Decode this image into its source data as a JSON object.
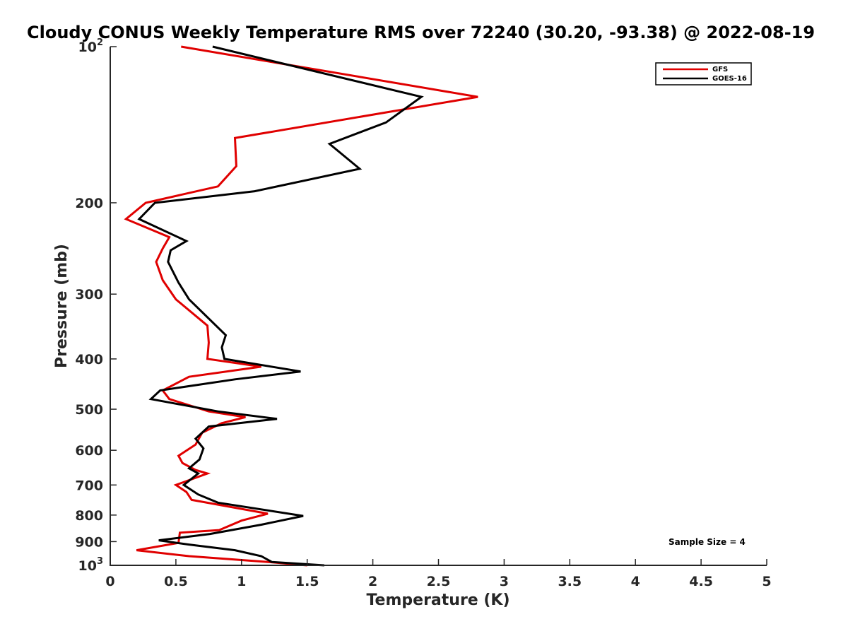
{
  "chart_data": {
    "type": "line",
    "title": "Cloudy CONUS Weekly Temperature RMS over 72240 (30.20, -93.38) @ 2022-08-19",
    "xlabel": "Temperature (K)",
    "ylabel": "Pressure (mb)",
    "xlim": [
      0,
      5
    ],
    "ylim": [
      100,
      1000
    ],
    "y_scale": "log",
    "y_reversed": true,
    "x_ticks": [
      "0",
      "0.5",
      "1",
      "1.5",
      "2",
      "2.5",
      "3",
      "3.5",
      "4",
      "4.5",
      "5"
    ],
    "x_tick_values": [
      0,
      0.5,
      1,
      1.5,
      2,
      2.5,
      3,
      3.5,
      4,
      4.5,
      5
    ],
    "y_tick_values": [
      100,
      200,
      300,
      400,
      500,
      600,
      700,
      800,
      900,
      1000
    ],
    "y_ticks": [
      {
        "base": "10",
        "exp": "2"
      },
      {
        "base": "200",
        "exp": ""
      },
      {
        "base": "300",
        "exp": ""
      },
      {
        "base": "400",
        "exp": ""
      },
      {
        "base": "500",
        "exp": ""
      },
      {
        "base": "600",
        "exp": ""
      },
      {
        "base": "700",
        "exp": ""
      },
      {
        "base": "800",
        "exp": ""
      },
      {
        "base": "900",
        "exp": ""
      },
      {
        "base": "10",
        "exp": "3"
      }
    ],
    "grid": false,
    "legend_position": "top-right",
    "annotation": "Sample Size = 4",
    "series": [
      {
        "name": "GFS",
        "color": "#e00000",
        "points": [
          [
            0.54,
            100
          ],
          [
            2.8,
            125
          ],
          [
            0.95,
            150
          ],
          [
            0.96,
            170
          ],
          [
            0.82,
            186
          ],
          [
            0.27,
            200
          ],
          [
            0.12,
            215
          ],
          [
            0.45,
            233
          ],
          [
            0.4,
            245
          ],
          [
            0.35,
            260
          ],
          [
            0.4,
            282
          ],
          [
            0.5,
            307
          ],
          [
            0.74,
            345
          ],
          [
            0.75,
            372
          ],
          [
            0.74,
            400
          ],
          [
            1.15,
            414
          ],
          [
            0.6,
            433
          ],
          [
            0.4,
            460
          ],
          [
            0.45,
            478
          ],
          [
            0.75,
            505
          ],
          [
            1.03,
            518
          ],
          [
            0.85,
            532
          ],
          [
            0.7,
            555
          ],
          [
            0.65,
            585
          ],
          [
            0.52,
            615
          ],
          [
            0.55,
            635
          ],
          [
            0.65,
            655
          ],
          [
            0.74,
            665
          ],
          [
            0.5,
            700
          ],
          [
            0.58,
            722
          ],
          [
            0.62,
            748
          ],
          [
            1.2,
            795
          ],
          [
            1.0,
            820
          ],
          [
            0.83,
            855
          ],
          [
            0.53,
            865
          ],
          [
            0.52,
            905
          ],
          [
            0.2,
            935
          ],
          [
            0.6,
            960
          ],
          [
            1.2,
            985
          ],
          [
            1.5,
            1000
          ]
        ]
      },
      {
        "name": "GOES-16",
        "color": "#000000",
        "points": [
          [
            0.78,
            100
          ],
          [
            2.37,
            125
          ],
          [
            2.1,
            140
          ],
          [
            1.67,
            154
          ],
          [
            1.9,
            172
          ],
          [
            1.1,
            190
          ],
          [
            0.34,
            200
          ],
          [
            0.22,
            215
          ],
          [
            0.58,
            237
          ],
          [
            0.46,
            247
          ],
          [
            0.44,
            260
          ],
          [
            0.52,
            285
          ],
          [
            0.6,
            307
          ],
          [
            0.88,
            360
          ],
          [
            0.85,
            380
          ],
          [
            0.87,
            400
          ],
          [
            1.45,
            423
          ],
          [
            0.95,
            438
          ],
          [
            0.38,
            460
          ],
          [
            0.31,
            478
          ],
          [
            0.82,
            505
          ],
          [
            1.27,
            522
          ],
          [
            0.75,
            540
          ],
          [
            0.65,
            570
          ],
          [
            0.71,
            595
          ],
          [
            0.68,
            625
          ],
          [
            0.6,
            650
          ],
          [
            0.67,
            665
          ],
          [
            0.56,
            700
          ],
          [
            0.67,
            730
          ],
          [
            0.82,
            757
          ],
          [
            1.47,
            803
          ],
          [
            1.15,
            835
          ],
          [
            0.76,
            870
          ],
          [
            0.37,
            895
          ],
          [
            0.6,
            912
          ],
          [
            0.95,
            935
          ],
          [
            1.15,
            960
          ],
          [
            1.23,
            985
          ],
          [
            1.63,
            1000
          ]
        ]
      }
    ]
  }
}
